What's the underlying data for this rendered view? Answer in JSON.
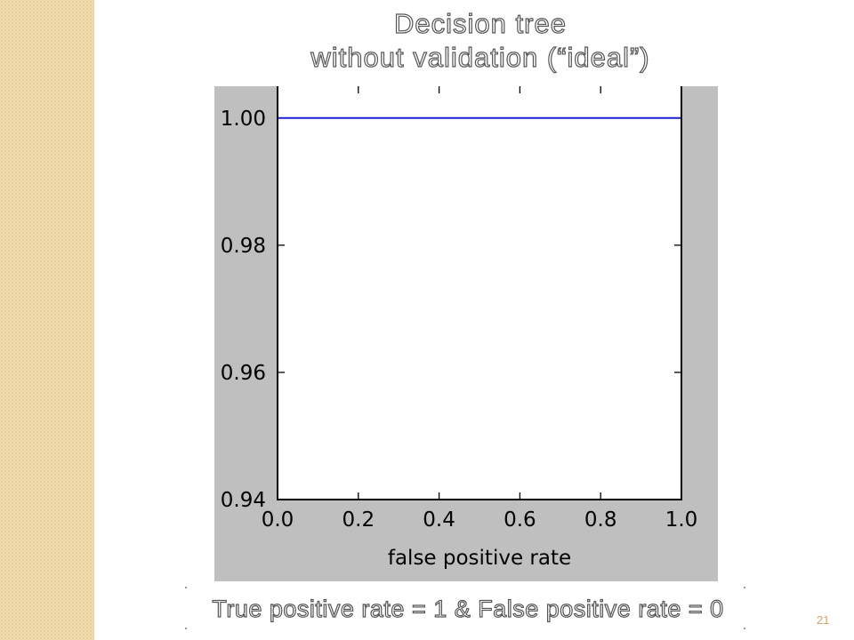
{
  "slide": {
    "title_line1": "Decision tree",
    "title_line2": "without validation (“ideal”)",
    "caption": "True positive rate = 1 & False positive rate = 0",
    "page_number": "21"
  },
  "colors": {
    "left_band": "#f3ddb1",
    "plot_background": "#bfbfbf",
    "axes_background": "#ffffff",
    "line": "#1f1fd6",
    "page_number": "#d1a564"
  },
  "chart_data": {
    "type": "line",
    "title": "",
    "xlabel": "false positive rate",
    "ylabel": "",
    "xlim": [
      0.0,
      1.0
    ],
    "ylim": [
      0.94,
      1.005
    ],
    "x_ticks": [
      "0.0",
      "0.2",
      "0.4",
      "0.6",
      "0.8",
      "1.0"
    ],
    "y_ticks": [
      "1.00",
      "0.98",
      "0.96",
      "0.94"
    ],
    "x": [
      0.0,
      1.0
    ],
    "y": [
      1.0,
      1.0
    ],
    "grid": false,
    "legend": "none"
  }
}
